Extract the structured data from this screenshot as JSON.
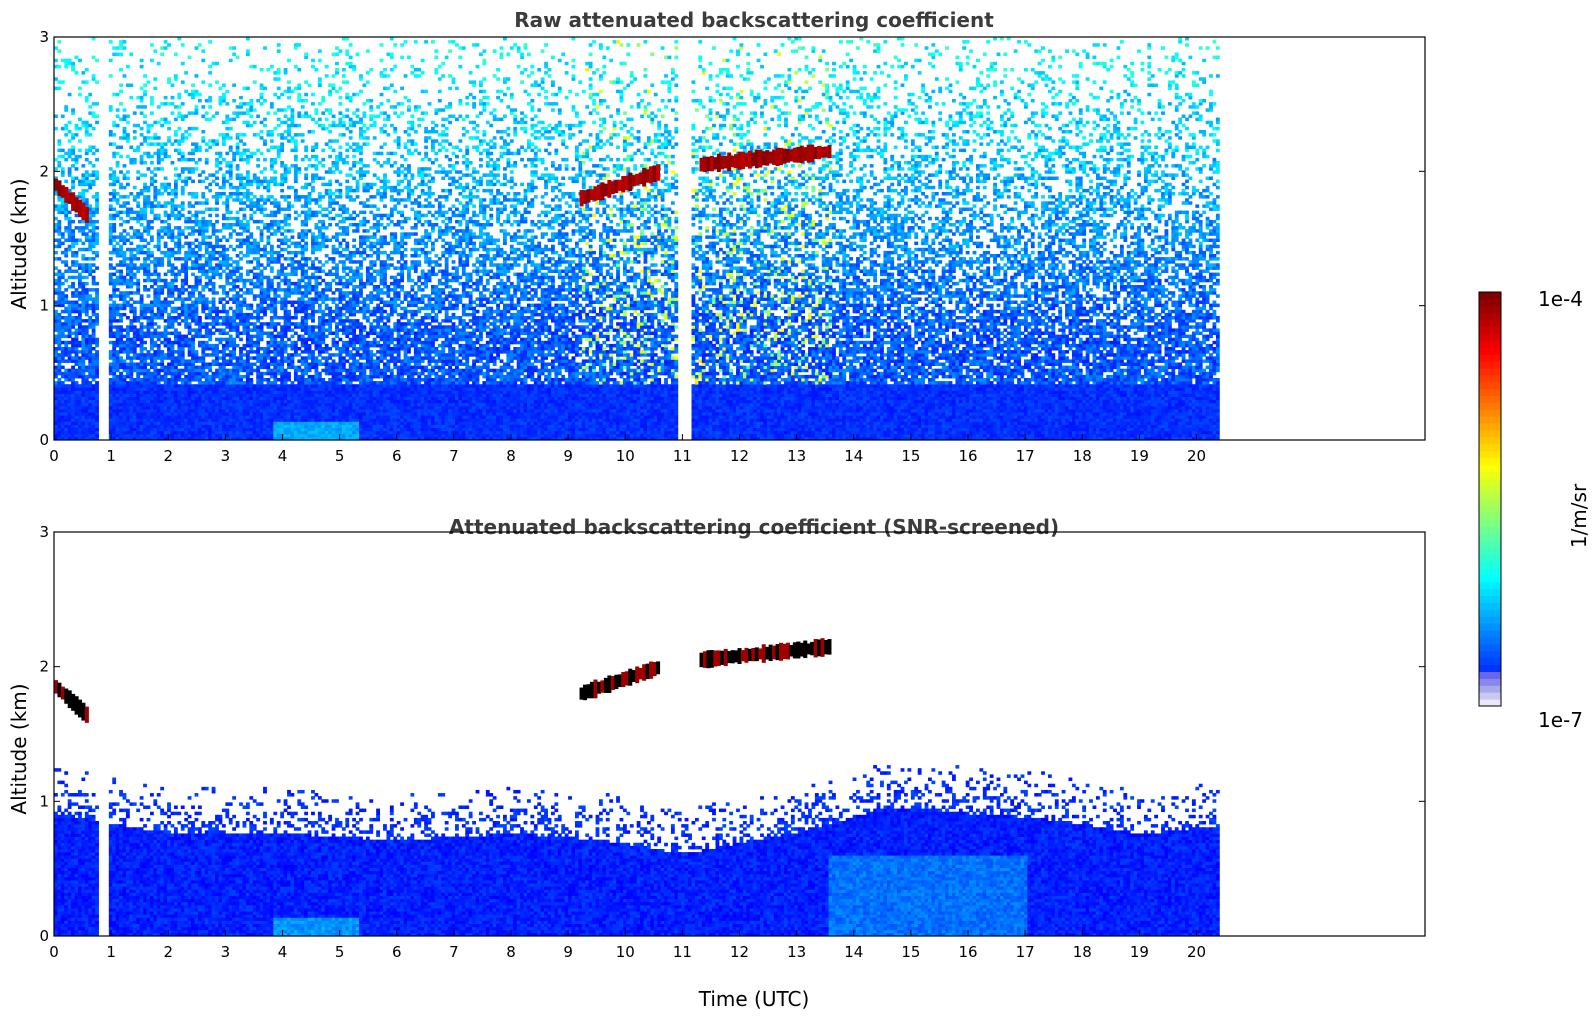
{
  "chart_data": [
    {
      "type": "heatmap",
      "title": "Raw attenuated backscattering coefficient",
      "xlabel": "",
      "ylabel": "Altitude (km)",
      "xlim": [
        0,
        24
      ],
      "ylim": [
        0,
        3
      ],
      "x_ticks": [
        "0",
        "1",
        "2",
        "3",
        "4",
        "5",
        "6",
        "7",
        "8",
        "9",
        "10",
        "11",
        "12",
        "13",
        "14",
        "15",
        "16",
        "17",
        "18",
        "19",
        "20"
      ],
      "y_ticks": [
        "0",
        "1",
        "2",
        "3"
      ],
      "data_end_time": 20.4,
      "gaps": [
        [
          0.75,
          0.95
        ],
        [
          10.9,
          11.1
        ]
      ],
      "boundary_layer_top_km": 0.4,
      "noise_top_km": 3.0,
      "cloud_layers": [
        {
          "start": 0.0,
          "end": 0.6,
          "altitude": [
            1.9,
            1.65
          ]
        },
        {
          "start": 9.2,
          "end": 10.6,
          "altitude": [
            1.8,
            2.0
          ]
        },
        {
          "start": 11.3,
          "end": 13.6,
          "altitude": [
            2.05,
            2.15
          ]
        }
      ]
    },
    {
      "type": "heatmap",
      "title": "Attenuated backscattering coefficient (SNR-screened)",
      "xlabel": "Time (UTC)",
      "ylabel": "Altitude (km)",
      "xlim": [
        0,
        24
      ],
      "ylim": [
        0,
        3
      ],
      "x_ticks": [
        "0",
        "1",
        "2",
        "3",
        "4",
        "5",
        "6",
        "7",
        "8",
        "9",
        "10",
        "11",
        "12",
        "13",
        "14",
        "15",
        "16",
        "17",
        "18",
        "19",
        "20"
      ],
      "y_ticks": [
        "0",
        "1",
        "2",
        "3"
      ],
      "data_end_time": 20.4,
      "boundary_layer_top_km": [
        [
          0,
          0.9
        ],
        [
          2,
          0.75
        ],
        [
          4,
          0.75
        ],
        [
          6,
          0.7
        ],
        [
          8,
          0.75
        ],
        [
          9.5,
          0.7
        ],
        [
          11,
          0.6
        ],
        [
          13.5,
          0.8
        ],
        [
          14.5,
          0.95
        ],
        [
          16,
          0.9
        ],
        [
          17.5,
          0.85
        ],
        [
          19,
          0.75
        ],
        [
          20.4,
          0.8
        ]
      ],
      "cloud_layers": [
        {
          "start": 0.0,
          "end": 0.6,
          "altitude": [
            1.85,
            1.62
          ]
        },
        {
          "start": 9.2,
          "end": 10.6,
          "altitude": [
            1.8,
            2.0
          ]
        },
        {
          "start": 11.3,
          "end": 13.6,
          "altitude": [
            2.05,
            2.15
          ]
        }
      ]
    }
  ],
  "colorbar": {
    "min_label": "1e-7",
    "max_label": "1e-4",
    "unit_label": "1/m/sr",
    "scale": "log",
    "colormap": "jet"
  }
}
